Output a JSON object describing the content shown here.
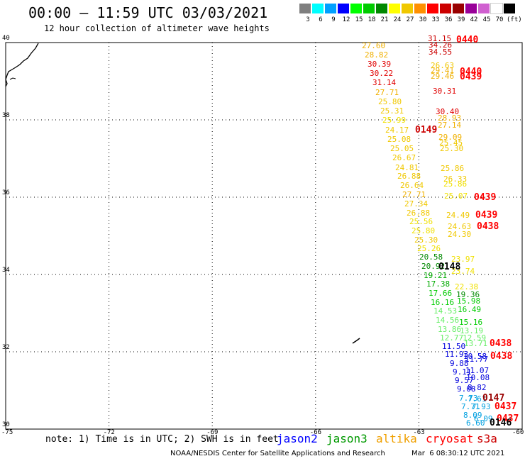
{
  "title": "00:00 – 11:59 UTC 03/03/2021",
  "subtitle": "12 hour collection of altimeter wave heights",
  "color_scale": {
    "colors": [
      "#7f7f7f",
      "#00ffff",
      "#00a0ff",
      "#0000ff",
      "#00ff00",
      "#00cc00",
      "#008800",
      "#ffff00",
      "#f0c800",
      "#ff9000",
      "#ff0000",
      "#cc0000",
      "#990000",
      "#990099",
      "#d060d0",
      "#ffffff",
      "#000000"
    ],
    "labels": [
      "3",
      "6",
      "9",
      "12",
      "15",
      "18",
      "21",
      "24",
      "27",
      "30",
      "33",
      "36",
      "39",
      "42",
      "45",
      "70",
      "(ft)"
    ]
  },
  "map": {
    "lon_ticks": [
      "-75",
      "-72",
      "-69",
      "-66",
      "-63",
      "-60"
    ],
    "lat_ticks": [
      "30",
      "32",
      "34",
      "36",
      "38",
      "40"
    ],
    "lon_range": [
      -75,
      -60
    ],
    "lat_range": [
      30,
      40
    ]
  },
  "observations": [
    {
      "v": "27.60",
      "c": "#f0b000"
    },
    {
      "v": "28.82",
      "c": "#f0b000"
    },
    {
      "v": "30.39",
      "c": "#e00000"
    },
    {
      "v": "30.22",
      "c": "#e00000"
    },
    {
      "v": "31.14",
      "c": "#e00000"
    },
    {
      "v": "27.71",
      "c": "#f0b000"
    },
    {
      "v": "25.80",
      "c": "#f0c800"
    },
    {
      "v": "25.31",
      "c": "#f0c800"
    },
    {
      "v": "25.99",
      "c": "#f0e000"
    },
    {
      "v": "24.17",
      "c": "#f0c800"
    },
    {
      "v": "25.08",
      "c": "#f0c800"
    },
    {
      "v": "25.05",
      "c": "#f0c800"
    },
    {
      "v": "26.67",
      "c": "#f0c800"
    },
    {
      "v": "24.81",
      "c": "#f0c800"
    },
    {
      "v": "26.88",
      "c": "#f0c800"
    },
    {
      "v": "26.64",
      "c": "#f0c800"
    },
    {
      "v": "27.71",
      "c": "#f0b000"
    },
    {
      "v": "27.34",
      "c": "#f0c800"
    },
    {
      "v": "26.88",
      "c": "#f0c800"
    },
    {
      "v": "25.56",
      "c": "#f0e000"
    },
    {
      "v": "25.80",
      "c": "#f0e000"
    },
    {
      "v": "25.30",
      "c": "#f0c800"
    },
    {
      "v": "25.26",
      "c": "#f0e000"
    },
    {
      "v": "20.58",
      "c": "#008800"
    },
    {
      "v": "20.92",
      "c": "#008800"
    },
    {
      "v": "19.21",
      "c": "#00aa00"
    },
    {
      "v": "17.38",
      "c": "#00aa00"
    },
    {
      "v": "17.66",
      "c": "#00cc00"
    },
    {
      "v": "16.16",
      "c": "#00cc00"
    },
    {
      "v": "14.53",
      "c": "#66ee66"
    },
    {
      "v": "14.56",
      "c": "#66ee66"
    },
    {
      "v": "13.86",
      "c": "#66ee66"
    },
    {
      "v": "12.77",
      "c": "#66ee66"
    },
    {
      "v": "11.50",
      "c": "#0000dd"
    },
    {
      "v": "11.93",
      "c": "#0000dd"
    },
    {
      "v": "9.88",
      "c": "#0000dd"
    },
    {
      "v": "9.11",
      "c": "#0000dd"
    },
    {
      "v": "9.57",
      "c": "#0000dd"
    },
    {
      "v": "9.08",
      "c": "#0000dd"
    },
    {
      "v": "7.73",
      "c": "#00a0e0"
    },
    {
      "v": "7.71",
      "c": "#00a0e0"
    },
    {
      "v": "8.09",
      "c": "#00a0e0"
    },
    {
      "v": "6.60",
      "c": "#00a0e0"
    },
    {
      "v": "31.15",
      "c": "#cc0000"
    },
    {
      "v": "34.26",
      "c": "#cc0000"
    },
    {
      "v": "34.55",
      "c": "#cc0000"
    },
    {
      "v": "26.63",
      "c": "#f0c800"
    },
    {
      "v": "29.41",
      "c": "#f0b000"
    },
    {
      "v": "29.46",
      "c": "#f0b000"
    },
    {
      "v": "30.31",
      "c": "#e00000"
    },
    {
      "v": "30.40",
      "c": "#e00000"
    },
    {
      "v": "28.93",
      "c": "#f0b000"
    },
    {
      "v": "27.14",
      "c": "#f0b000"
    },
    {
      "v": "29.09",
      "c": "#f0b000"
    },
    {
      "v": "25.45",
      "c": "#f0c800"
    },
    {
      "v": "25.30",
      "c": "#f0c800"
    },
    {
      "v": "25.86",
      "c": "#f0c800"
    },
    {
      "v": "26.33",
      "c": "#f0c800"
    },
    {
      "v": "25.86",
      "c": "#f0e000"
    },
    {
      "v": "25.07",
      "c": "#f0e000"
    },
    {
      "v": "24.49",
      "c": "#f0c800"
    },
    {
      "v": "24.63",
      "c": "#f0c800"
    },
    {
      "v": "24.30",
      "c": "#f0c800"
    },
    {
      "v": "23.97",
      "c": "#f0e000"
    },
    {
      "v": "23.74",
      "c": "#f0e000"
    },
    {
      "v": "22.38",
      "c": "#f0e000"
    },
    {
      "v": "19.36",
      "c": "#008800"
    },
    {
      "v": "15.98",
      "c": "#00cc00"
    },
    {
      "v": "16.49",
      "c": "#00cc00"
    },
    {
      "v": "15.16",
      "c": "#00cc00"
    },
    {
      "v": "13.19",
      "c": "#66ee66"
    },
    {
      "v": "12.59",
      "c": "#66ee66"
    },
    {
      "v": "13.71",
      "c": "#66ee66"
    },
    {
      "v": "10.58",
      "c": "#0000dd"
    },
    {
      "v": "11.77",
      "c": "#0000dd"
    },
    {
      "v": "11.07",
      "c": "#0000dd"
    },
    {
      "v": "10.08",
      "c": "#0000dd"
    },
    {
      "v": "8.82",
      "c": "#0000dd"
    },
    {
      "v": "7.61",
      "c": "#00a0e0"
    },
    {
      "v": "7.93",
      "c": "#00a0e0"
    },
    {
      "v": "6.09",
      "c": "#00a0e0"
    }
  ],
  "pass_labels": [
    {
      "t": "0440",
      "c": "#ff0000"
    },
    {
      "t": "0440",
      "c": "#ff0000"
    },
    {
      "t": "0439",
      "c": "#ff0000"
    },
    {
      "t": "0149",
      "c": "#cc0000"
    },
    {
      "t": "0439",
      "c": "#ff0000"
    },
    {
      "t": "0439",
      "c": "#ff0000"
    },
    {
      "t": "0438",
      "c": "#ff0000"
    },
    {
      "t": "0148",
      "c": "#000000"
    },
    {
      "t": "0438",
      "c": "#ff0000"
    },
    {
      "t": "0438",
      "c": "#ff0000"
    },
    {
      "t": "0147",
      "c": "#990000"
    },
    {
      "t": "0437",
      "c": "#ff0000"
    },
    {
      "t": "0437",
      "c": "#ff0000"
    },
    {
      "t": "0146",
      "c": "#000000"
    }
  ],
  "note": "note: 1) Time is in UTC; 2) SWH is in feet",
  "satellites": [
    {
      "name": "jason2",
      "color": "#0000ff"
    },
    {
      "name": "jason3",
      "color": "#009900"
    },
    {
      "name": "altika",
      "color": "#f0a000"
    },
    {
      "name": "cryosat",
      "color": "#ff0000"
    },
    {
      "name": "s3a",
      "color": "#cc0000"
    }
  ],
  "credit": "NOAA/NESDIS Center for Satellite Applications and Research",
  "timestamp": "Mar  6 08:30:12 UTC 2021"
}
